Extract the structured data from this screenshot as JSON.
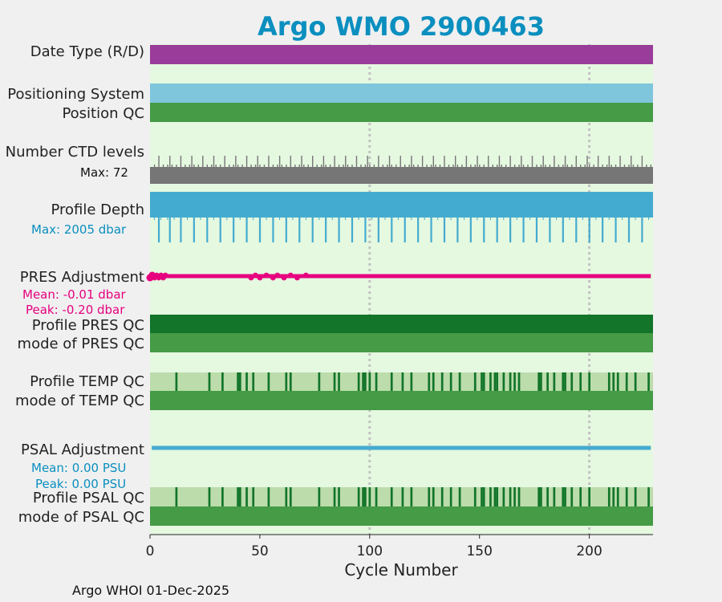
{
  "chart_data": {
    "type": "bar",
    "title": "Argo WMO 2900463",
    "xlabel": "Cycle Number",
    "xlim": [
      0,
      229
    ],
    "xticks": [
      0,
      50,
      100,
      150,
      200
    ],
    "vgrid": [
      100,
      200
    ],
    "footer": "Argo WHOI 01-Dec-2025",
    "colors": {
      "title": "#0a8fbf",
      "plot_bg": "#e5f8e0",
      "date_type": "#9a3c99",
      "positioning": "#7fc6dd",
      "position_qc": "#459b46",
      "ctd": "#767676",
      "depth": "#44abd0",
      "pres_adj": "#e6007f",
      "pres_qc": "#12752a",
      "temp_qc_bg": "#bcdcac",
      "qc_tick": "#12752a",
      "psal_adj": "#44abd0",
      "stat_blue": "#0a8fbf",
      "stat_pink": "#e6007f"
    },
    "rows": {
      "date_type": {
        "label": "Date Type (R/D)"
      },
      "positioning": {
        "label": "Positioning System"
      },
      "position_qc": {
        "label": "Position QC"
      },
      "ctd_levels": {
        "label": "Number CTD levels",
        "max_text": "Max: 72",
        "max": 72
      },
      "profile_depth": {
        "label": "Profile Depth",
        "max_text": "Max: 2005 dbar",
        "max": 2005
      },
      "pres_adjustment": {
        "label": "PRES Adjustment",
        "mean_text": "Mean: -0.01 dbar",
        "peak_text": "Peak: -0.20 dbar",
        "mean": -0.01,
        "peak": -0.2
      },
      "profile_pres_qc": {
        "label": "Profile PRES QC"
      },
      "mode_pres_qc": {
        "label": "mode of PRES QC"
      },
      "profile_temp_qc": {
        "label": "Profile TEMP QC"
      },
      "mode_temp_qc": {
        "label": "mode of TEMP QC"
      },
      "psal_adjustment": {
        "label": "PSAL Adjustment",
        "mean_text": "Mean: 0.00 PSU",
        "peak_text": "Peak: 0.00 PSU",
        "mean": 0.0,
        "peak": 0.0
      },
      "profile_psal_qc": {
        "label": "Profile PSAL QC"
      },
      "mode_psal_qc": {
        "label": "mode of PSAL QC"
      }
    },
    "ctd_short_cycles": [
      4,
      9,
      14,
      19,
      24,
      29,
      34,
      39,
      44,
      49,
      54,
      59,
      64,
      69,
      74,
      79,
      84,
      89,
      94,
      99,
      104,
      109,
      114,
      119,
      124,
      129,
      134,
      139,
      144,
      149,
      154,
      159,
      164,
      169,
      174,
      179,
      184,
      189,
      194,
      199,
      204,
      209,
      214,
      219,
      224
    ],
    "depth_shallow_cycles": [
      4,
      9,
      14,
      20,
      26,
      32,
      38,
      44,
      50,
      56,
      62,
      68,
      74,
      80,
      86,
      92,
      98,
      104,
      110,
      116,
      122,
      128,
      134,
      140,
      146,
      152,
      158,
      164,
      170,
      176,
      182,
      188,
      194,
      200,
      206,
      212,
      218,
      224
    ],
    "pres_adj_wiggle_cycles": [
      0,
      1,
      2,
      3,
      4,
      5,
      6,
      7,
      46,
      48,
      50,
      53,
      56,
      58,
      61,
      64,
      67,
      71
    ],
    "temp_qc_flag_cycles": [
      12,
      27,
      33,
      40,
      41,
      44,
      47,
      54,
      62,
      64,
      77,
      84,
      86,
      95,
      97,
      98,
      100,
      103,
      110,
      115,
      119,
      127,
      129,
      133,
      137,
      141,
      148,
      151,
      152,
      155,
      157,
      158,
      161,
      164,
      166,
      168,
      177,
      178,
      181,
      184,
      188,
      189,
      192,
      196,
      200,
      209,
      211,
      213,
      217,
      221,
      227
    ],
    "psal_qc_flag_cycles": [
      12,
      27,
      33,
      40,
      41,
      44,
      47,
      54,
      62,
      64,
      77,
      84,
      86,
      95,
      97,
      98,
      100,
      103,
      110,
      115,
      119,
      127,
      129,
      133,
      137,
      141,
      148,
      151,
      152,
      155,
      157,
      158,
      161,
      164,
      166,
      168,
      177,
      178,
      181,
      184,
      188,
      189,
      192,
      196,
      200,
      209,
      211,
      213,
      217,
      221,
      227
    ]
  }
}
